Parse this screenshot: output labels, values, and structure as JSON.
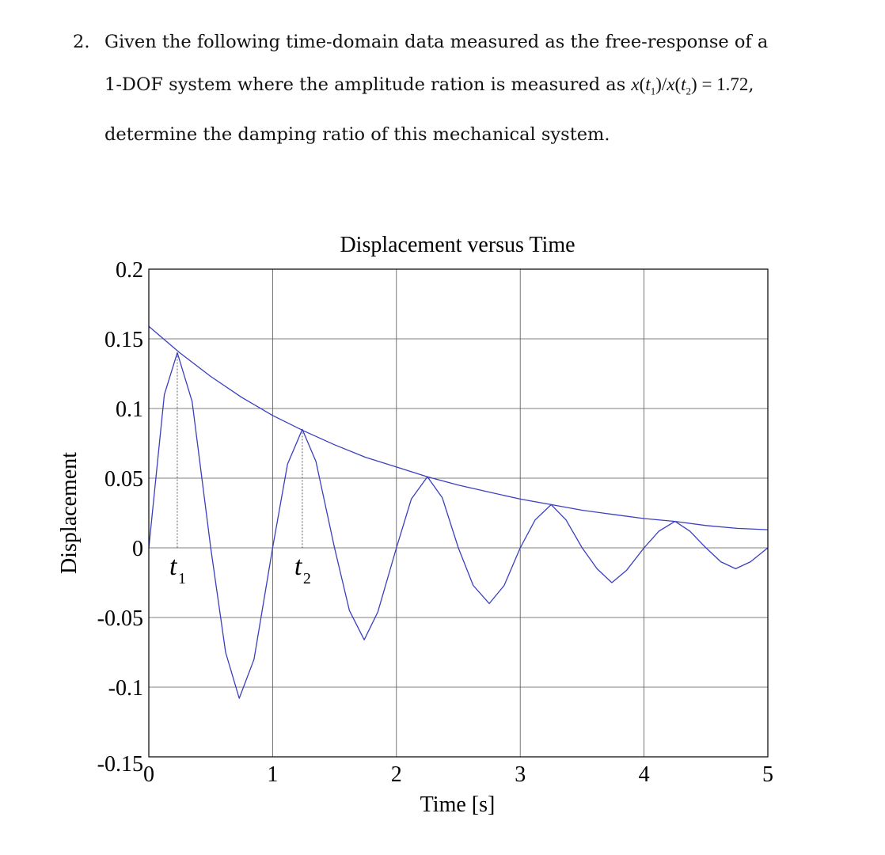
{
  "problem": {
    "number": "2.",
    "line1": "Given the following time-domain data measured as the free-response of a",
    "line2_prefix": "1-DOF system where the amplitude ration is measured as",
    "ratio_value": "1.72",
    "line3": "determine the damping ratio of this mechanical system."
  },
  "chart_data": {
    "type": "line",
    "title": "Displacement versus Time",
    "xlabel": "Time [s]",
    "ylabel": "Displacement",
    "xlim": [
      0,
      5
    ],
    "ylim": [
      -0.15,
      0.2
    ],
    "x_ticks": [
      "0",
      "1",
      "2",
      "3",
      "4",
      "5"
    ],
    "y_ticks": [
      "0.2",
      "0.15",
      "0.1",
      "0.05",
      "0",
      "-0.05",
      "-0.1",
      "-0.15"
    ],
    "grid": true,
    "line_color": "#3a3fbf",
    "series": [
      {
        "x": [
          0,
          0.125,
          0.23,
          0.35,
          0.5,
          0.62,
          0.73,
          0.85,
          1.0,
          1.12,
          1.24,
          1.35,
          1.5,
          1.62,
          1.74,
          1.85,
          2.0,
          2.12,
          2.25,
          2.37,
          2.5,
          2.62,
          2.75,
          2.87,
          3.0,
          3.12,
          3.25,
          3.37,
          3.5,
          3.62,
          3.74,
          3.86,
          4.0,
          4.12,
          4.25,
          4.37,
          4.5,
          4.62,
          4.74,
          4.86,
          5.0
        ],
        "y": [
          0.0,
          0.11,
          0.14,
          0.105,
          0.0,
          -0.075,
          -0.108,
          -0.08,
          0.0,
          0.06,
          0.085,
          0.062,
          0.0,
          -0.045,
          -0.066,
          -0.046,
          0.0,
          0.035,
          0.051,
          0.036,
          0.0,
          -0.027,
          -0.04,
          -0.027,
          0.0,
          0.02,
          0.031,
          0.02,
          0.0,
          -0.015,
          -0.025,
          -0.016,
          0.0,
          0.012,
          0.019,
          0.012,
          0.0,
          -0.01,
          -0.015,
          -0.01,
          0.0
        ]
      },
      {
        "x": [
          0,
          0.25,
          0.5,
          0.75,
          1.0,
          1.25,
          1.5,
          1.75,
          2.0,
          2.25,
          2.5,
          2.75,
          3.0,
          3.25,
          3.5,
          3.75,
          4.0,
          4.25,
          4.5,
          4.75,
          5.0
        ],
        "y": [
          0.159,
          0.14,
          0.123,
          0.108,
          0.095,
          0.084,
          0.074,
          0.065,
          0.058,
          0.051,
          0.045,
          0.04,
          0.035,
          0.031,
          0.027,
          0.024,
          0.021,
          0.019,
          0.016,
          0.014,
          0.013
        ]
      }
    ],
    "annotations": [
      {
        "x": 0.23,
        "y": 0.14,
        "label": "t",
        "subscript": "1"
      },
      {
        "x": 1.24,
        "y": 0.085,
        "label": "t",
        "subscript": "2"
      }
    ]
  }
}
